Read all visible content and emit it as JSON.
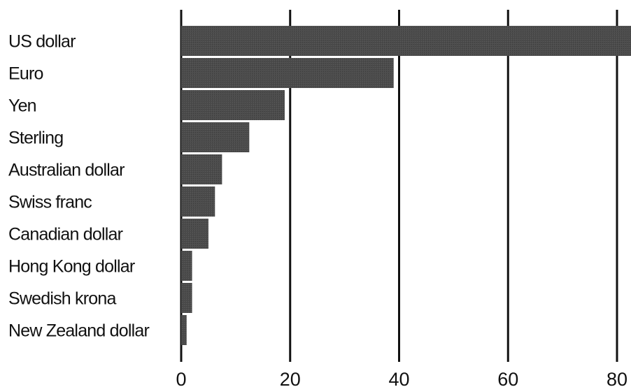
{
  "chart_data": {
    "type": "bar",
    "orientation": "horizontal",
    "title": "",
    "xlabel": "",
    "ylabel": "",
    "categories": [
      "US dollar",
      "Euro",
      "Yen",
      "Sterling",
      "Australian dollar",
      "Swiss franc",
      "Canadian dollar",
      "Hong Kong dollar",
      "Swedish krona",
      "New Zealand dollar"
    ],
    "values": [
      83,
      39,
      19,
      12.5,
      7.5,
      6.2,
      5,
      2,
      2,
      1
    ],
    "xlim": [
      0,
      83
    ],
    "xticks": [
      0,
      20,
      40,
      60,
      80
    ],
    "xtick_labels": [
      "0",
      "20",
      "40",
      "60",
      "80"
    ],
    "grid": "vertical lines at x ticks",
    "legend": "none",
    "colors": {
      "bar": "#4a4a4a",
      "gridline": "#111111",
      "text": "#111111",
      "background": "#ffffff"
    }
  }
}
